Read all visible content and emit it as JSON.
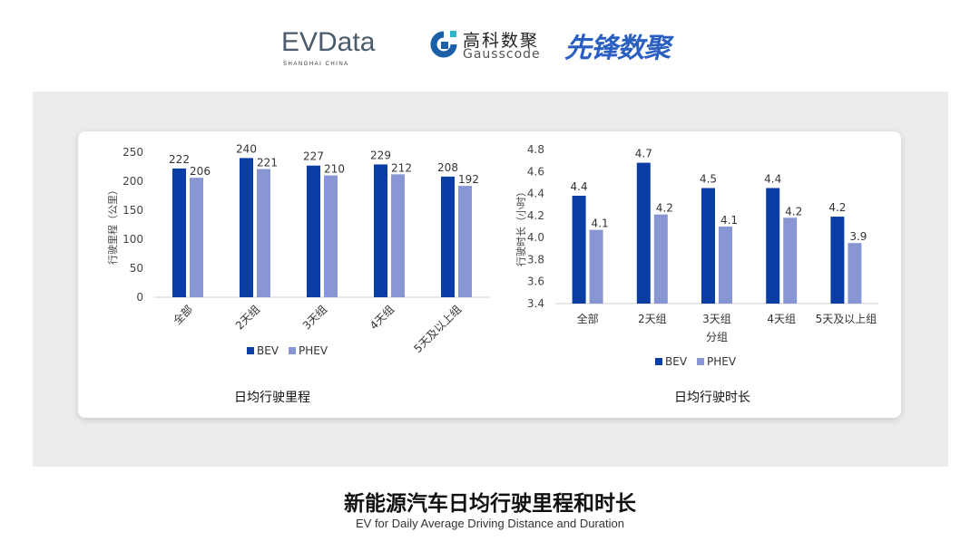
{
  "logos": {
    "evdata": "EVData",
    "evdata_sub": "SHANGHAI CHINA",
    "gausscode_cn": "高科数聚",
    "gausscode_en": "Gausscode",
    "xianfeng": "先锋数聚"
  },
  "title": "新能源汽车日均行驶里程和时长",
  "subtitle": "EV for Daily Average Driving Distance and Duration",
  "colors": {
    "BEV": "#0a3ea5",
    "PHEV": "#8896d3"
  },
  "chart_data": [
    {
      "type": "bar",
      "title": "日均行驶里程",
      "xlabel": "",
      "ylabel": "行驶里程（公里）",
      "ylim": [
        0,
        250
      ],
      "yticks": [
        0,
        50,
        100,
        150,
        200,
        250
      ],
      "categories": [
        "全部",
        "2天组",
        "3天组",
        "4天组",
        "5天及以上组"
      ],
      "series": [
        {
          "name": "BEV",
          "values": [
            222,
            240,
            227,
            229,
            208
          ],
          "labels": [
            "222",
            "240",
            "227",
            "229",
            "208"
          ]
        },
        {
          "name": "PHEV",
          "values": [
            206,
            221,
            210,
            212,
            192
          ],
          "labels": [
            "206",
            "221",
            "210",
            "212",
            "192"
          ]
        }
      ],
      "grid": false,
      "legend": "bottom",
      "xtick_rotation": "rotated"
    },
    {
      "type": "bar",
      "title": "日均行驶时长",
      "xlabel": "分组",
      "ylabel": "行驶时长（小时）",
      "ylim": [
        3.4,
        4.8
      ],
      "yticks": [
        "3.4",
        "3.6",
        "3.8",
        "4.0",
        "4.2",
        "4.4",
        "4.6",
        "4.8"
      ],
      "categories": [
        "全部",
        "2天组",
        "3天组",
        "4天组",
        "5天及以上组"
      ],
      "series": [
        {
          "name": "BEV",
          "values": [
            4.38,
            4.68,
            4.45,
            4.45,
            4.19
          ],
          "labels": [
            "4.4",
            "4.7",
            "4.5",
            "4.4",
            "4.2"
          ]
        },
        {
          "name": "PHEV",
          "values": [
            4.07,
            4.21,
            4.1,
            4.18,
            3.95
          ],
          "labels": [
            "4.1",
            "4.2",
            "4.1",
            "4.2",
            "3.9"
          ]
        }
      ],
      "grid": false,
      "legend": "bottom"
    }
  ]
}
